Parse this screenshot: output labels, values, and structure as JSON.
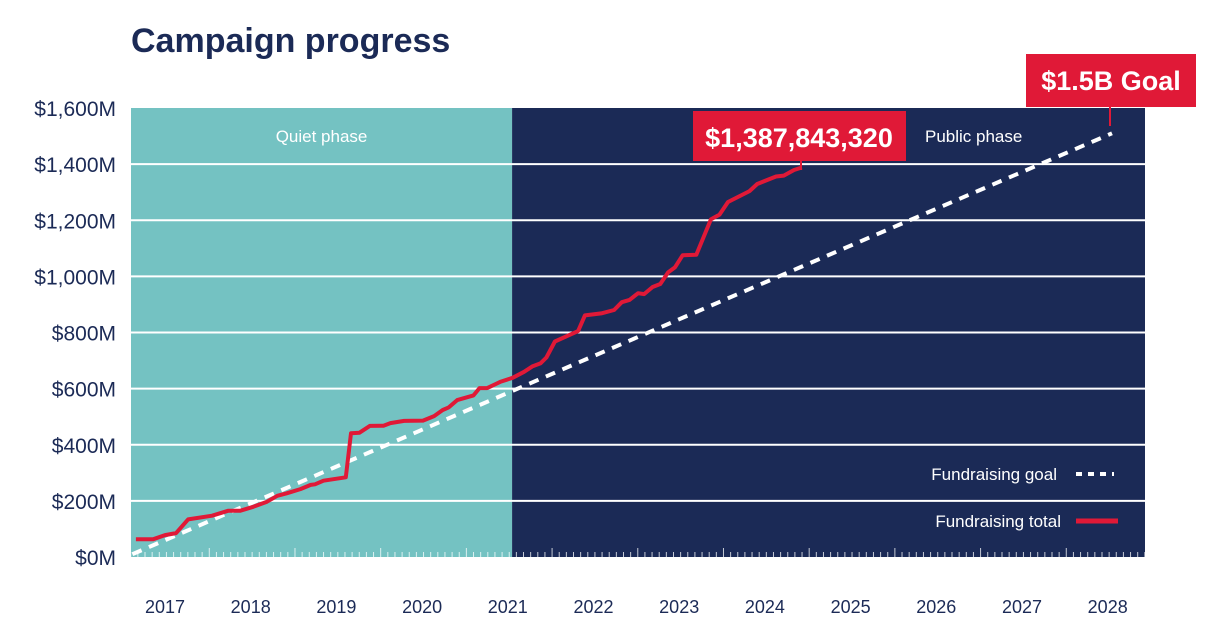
{
  "chart_data": {
    "type": "line",
    "title": "Campaign progress",
    "xlabel": "",
    "ylabel": "",
    "ylim": [
      0,
      1600
    ],
    "xlim": [
      2016.6,
      2028.45
    ],
    "grid": true,
    "legend_placement": "bottom-right",
    "x_tick_labels": [
      "2017",
      "2018",
      "2019",
      "2020",
      "2021",
      "2022",
      "2023",
      "2024",
      "2025",
      "2026",
      "2027",
      "2028"
    ],
    "y_tick_labels": [
      "$0M",
      "$200M",
      "$400M",
      "$600M",
      "$800M",
      "$1,000M",
      "$1,200M",
      "$1,400M",
      "$1,600M"
    ],
    "y_tick_values": [
      0,
      200,
      400,
      600,
      800,
      1000,
      1200,
      1400,
      1600
    ],
    "phases": [
      {
        "label": "Quiet phase",
        "start": 2016.6,
        "end": 2021.05,
        "color": "#74c2c2"
      },
      {
        "label": "Public phase",
        "start": 2021.05,
        "end": 2028.45,
        "color": "#1b2a56"
      }
    ],
    "series": [
      {
        "name": "Fundraising goal",
        "style": "dashed",
        "color": "#ffffff",
        "x": [
          2016.62,
          2028.05
        ],
        "y": [
          10,
          1510
        ]
      },
      {
        "name": "Fundraising total",
        "style": "solid",
        "color": "#e01937",
        "x": [
          2016.66,
          2016.86,
          2017.0,
          2017.13,
          2017.27,
          2017.55,
          2017.74,
          2017.88,
          2018.03,
          2018.19,
          2018.31,
          2018.42,
          2018.58,
          2018.7,
          2018.75,
          2018.85,
          2019.11,
          2019.17,
          2019.27,
          2019.39,
          2019.55,
          2019.63,
          2019.79,
          2020.01,
          2020.14,
          2020.24,
          2020.31,
          2020.41,
          2020.6,
          2020.67,
          2020.76,
          2020.92,
          2021.06,
          2021.19,
          2021.29,
          2021.38,
          2021.45,
          2021.55,
          2021.82,
          2021.9,
          2022.09,
          2022.24,
          2022.33,
          2022.42,
          2022.52,
          2022.59,
          2022.69,
          2022.78,
          2022.87,
          2022.95,
          2023.04,
          2023.2,
          2023.37,
          2023.47,
          2023.57,
          2023.82,
          2023.91,
          2024.13,
          2024.22,
          2024.34,
          2024.43
        ],
        "y": [
          63,
          63,
          78,
          85,
          134,
          147,
          165,
          165,
          179,
          197,
          218,
          227,
          242,
          257,
          259,
          272,
          284,
          441,
          443,
          467,
          468,
          477,
          485,
          486,
          502,
          524,
          533,
          559,
          576,
          602,
          602,
          625,
          639,
          660,
          680,
          690,
          711,
          768,
          805,
          861,
          868,
          880,
          908,
          916,
          940,
          937,
          962,
          973,
          1014,
          1032,
          1075,
          1077,
          1203,
          1220,
          1265,
          1304,
          1329,
          1356,
          1359,
          1379,
          1388
        ]
      }
    ],
    "annotations": {
      "total_callout": "$1,387,843,320",
      "goal_callout": "$1.5B Goal"
    },
    "colors": {
      "text": "#1b2a56",
      "accent": "#e01937",
      "quiet": "#74c2c2",
      "public": "#1b2a56"
    }
  }
}
